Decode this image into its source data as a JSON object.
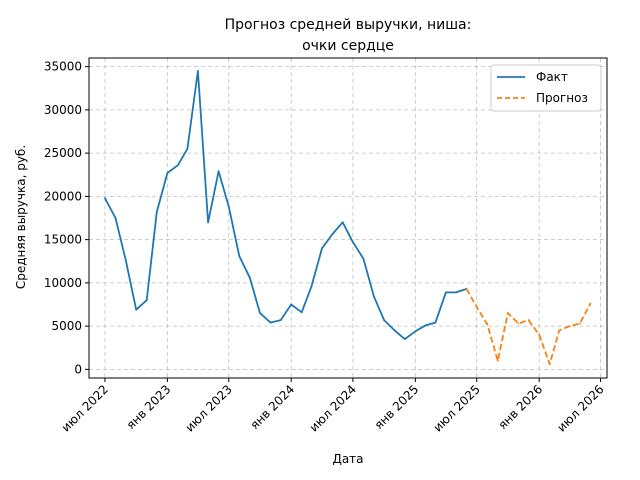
{
  "chart_data": {
    "type": "line",
    "title_line1": "Прогноз средней выручки, ниша:",
    "title_line2": "очки сердце",
    "xlabel": "Дата",
    "ylabel": "Средняя выручка, руб.",
    "ylim": [
      -1000,
      36000
    ],
    "xlim": [
      "2022-05-15",
      "2026-07-20"
    ],
    "y_ticks": [
      0,
      5000,
      10000,
      15000,
      20000,
      25000,
      30000,
      35000
    ],
    "x_ticks": [
      {
        "date": "2022-07-01",
        "label": "июл 2022"
      },
      {
        "date": "2023-01-01",
        "label": "янв 2023"
      },
      {
        "date": "2023-07-01",
        "label": "июл 2023"
      },
      {
        "date": "2024-01-01",
        "label": "янв 2024"
      },
      {
        "date": "2024-07-01",
        "label": "июл 2024"
      },
      {
        "date": "2025-01-01",
        "label": "янв 2025"
      },
      {
        "date": "2025-07-01",
        "label": "июл 2025"
      },
      {
        "date": "2026-01-01",
        "label": "янв 2026"
      },
      {
        "date": "2026-07-01",
        "label": "июл 2026"
      }
    ],
    "grid": true,
    "legend_position": "top-right",
    "series": [
      {
        "name": "Факт",
        "style": "solid",
        "color": "#1f77b4",
        "points": [
          {
            "x": "2022-07-01",
            "y": 19800
          },
          {
            "x": "2022-08-01",
            "y": 17500
          },
          {
            "x": "2022-09-01",
            "y": 12500
          },
          {
            "x": "2022-10-01",
            "y": 6900
          },
          {
            "x": "2022-11-01",
            "y": 8000
          },
          {
            "x": "2022-12-01",
            "y": 18200
          },
          {
            "x": "2023-01-01",
            "y": 22700
          },
          {
            "x": "2023-02-01",
            "y": 23600
          },
          {
            "x": "2023-03-01",
            "y": 25500
          },
          {
            "x": "2023-04-01",
            "y": 34500
          },
          {
            "x": "2023-05-01",
            "y": 17000
          },
          {
            "x": "2023-06-01",
            "y": 22900
          },
          {
            "x": "2023-07-01",
            "y": 18800
          },
          {
            "x": "2023-08-01",
            "y": 13100
          },
          {
            "x": "2023-09-01",
            "y": 10600
          },
          {
            "x": "2023-10-01",
            "y": 6500
          },
          {
            "x": "2023-11-01",
            "y": 5400
          },
          {
            "x": "2023-12-01",
            "y": 5700
          },
          {
            "x": "2024-01-01",
            "y": 7500
          },
          {
            "x": "2024-02-01",
            "y": 6600
          },
          {
            "x": "2024-03-01",
            "y": 9600
          },
          {
            "x": "2024-04-01",
            "y": 14000
          },
          {
            "x": "2024-05-01",
            "y": 15600
          },
          {
            "x": "2024-06-01",
            "y": 17000
          },
          {
            "x": "2024-07-01",
            "y": 14700
          },
          {
            "x": "2024-08-01",
            "y": 12800
          },
          {
            "x": "2024-09-01",
            "y": 8400
          },
          {
            "x": "2024-10-01",
            "y": 5700
          },
          {
            "x": "2024-11-01",
            "y": 4500
          },
          {
            "x": "2024-12-01",
            "y": 3500
          },
          {
            "x": "2025-01-01",
            "y": 4400
          },
          {
            "x": "2025-02-01",
            "y": 5100
          },
          {
            "x": "2025-03-01",
            "y": 5400
          },
          {
            "x": "2025-04-01",
            "y": 8900
          },
          {
            "x": "2025-05-01",
            "y": 8900
          },
          {
            "x": "2025-06-01",
            "y": 9300
          }
        ]
      },
      {
        "name": "Прогноз",
        "style": "dashed",
        "color": "#ff7f0e",
        "points": [
          {
            "x": "2025-06-01",
            "y": 9300
          },
          {
            "x": "2025-07-01",
            "y": 7200
          },
          {
            "x": "2025-08-01",
            "y": 5200
          },
          {
            "x": "2025-09-01",
            "y": 1000
          },
          {
            "x": "2025-10-01",
            "y": 6500
          },
          {
            "x": "2025-11-01",
            "y": 5300
          },
          {
            "x": "2025-12-01",
            "y": 5700
          },
          {
            "x": "2026-01-01",
            "y": 4000
          },
          {
            "x": "2026-02-01",
            "y": 600
          },
          {
            "x": "2026-03-01",
            "y": 4500
          },
          {
            "x": "2026-04-01",
            "y": 5000
          },
          {
            "x": "2026-05-01",
            "y": 5300
          },
          {
            "x": "2026-06-01",
            "y": 7600
          }
        ]
      }
    ]
  }
}
